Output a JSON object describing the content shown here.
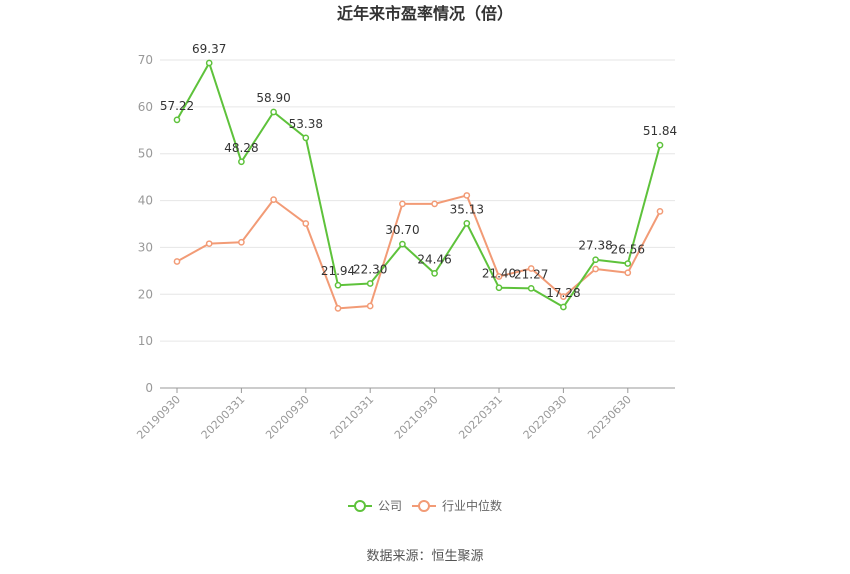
{
  "chart_data": {
    "type": "line",
    "title": "近年来市盈率情况（倍）",
    "source": "数据来源：恒生聚源",
    "ylim": [
      0,
      70
    ],
    "yticks": [
      0,
      10,
      20,
      30,
      40,
      50,
      60,
      70
    ],
    "x_tick_labels": [
      "20190930",
      "20200331",
      "20200930",
      "20210331",
      "20210930",
      "20220331",
      "20220930",
      "20230630"
    ],
    "legend_position": "bottom",
    "grid": true,
    "series": [
      {
        "name": "公司",
        "color": "#5ec23b",
        "values": [
          57.22,
          69.37,
          48.28,
          58.9,
          53.38,
          21.94,
          22.3,
          30.7,
          24.46,
          35.13,
          21.4,
          21.27,
          17.28,
          27.38,
          26.56,
          51.84
        ],
        "labels": [
          "57.22",
          "69.37",
          "48.28",
          "58.90",
          "53.38",
          "21.94",
          "22.30",
          "30.70",
          "24.46",
          "35.13",
          "21.40",
          "21.27",
          "17.28",
          "27.38",
          "26.56",
          "51.84"
        ]
      },
      {
        "name": "行业中位数",
        "color": "#f29b76",
        "values": [
          27.0,
          30.8,
          31.1,
          40.2,
          35.1,
          17.0,
          17.5,
          39.3,
          39.3,
          41.1,
          23.8,
          25.5,
          19.5,
          25.4,
          24.6,
          37.7
        ]
      }
    ]
  }
}
